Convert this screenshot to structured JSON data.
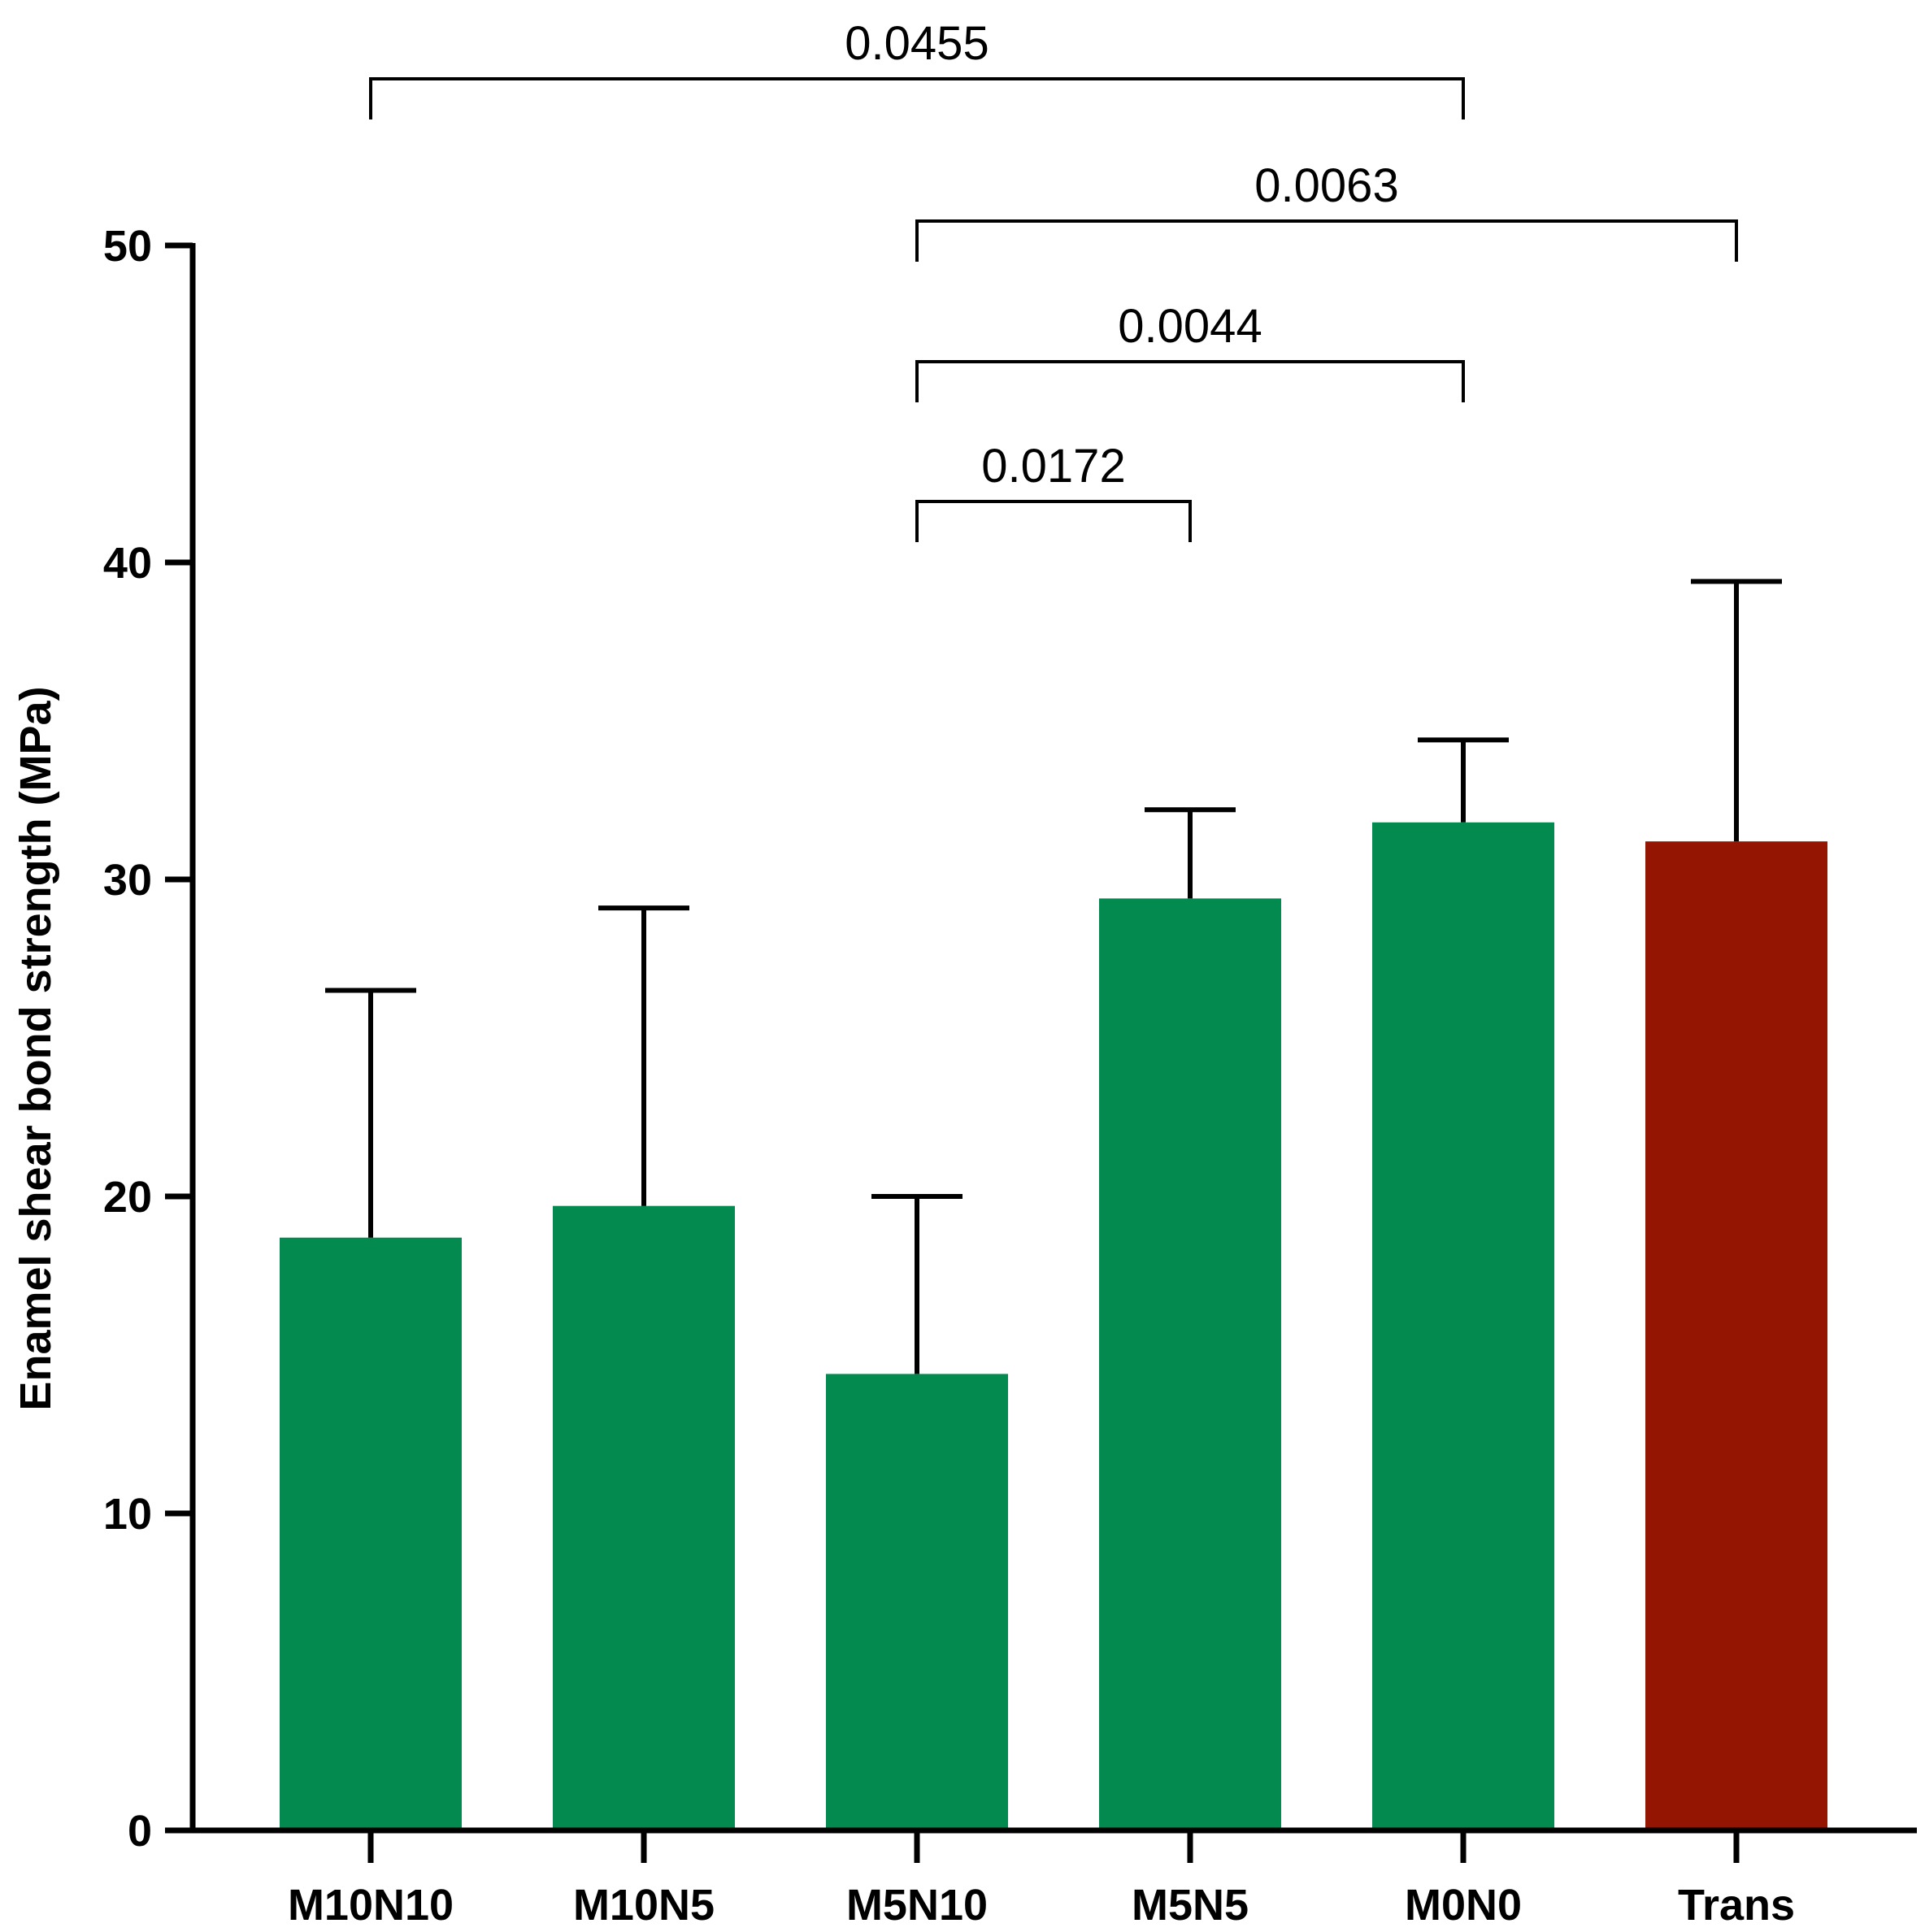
{
  "chart_data": {
    "type": "bar",
    "title": "",
    "xlabel": "",
    "ylabel": "Enamel shear bond strength (MPa)",
    "ylim": [
      0,
      50
    ],
    "yticks": [
      0,
      10,
      20,
      30,
      40,
      50
    ],
    "categories": [
      "M10N10",
      "M10N5",
      "M5N10",
      "M5N5",
      "M0N0",
      "Trans"
    ],
    "values": [
      18.7,
      19.7,
      14.4,
      29.4,
      31.8,
      31.2
    ],
    "error_upper": [
      26.5,
      29.1,
      20.0,
      32.2,
      34.4,
      39.4
    ],
    "bar_colors": [
      "#038a4f",
      "#038a4f",
      "#038a4f",
      "#038a4f",
      "#038a4f",
      "#951503"
    ],
    "grid": false,
    "comparisons": [
      {
        "from": "M10N10",
        "to": "M0N0",
        "p_value": "0.0455"
      },
      {
        "from": "M5N10",
        "to": "Trans",
        "p_value": "0.0063"
      },
      {
        "from": "M5N10",
        "to": "M0N0",
        "p_value": "0.0044"
      },
      {
        "from": "M5N10",
        "to": "M5N5",
        "p_value": "0.0172"
      }
    ]
  }
}
